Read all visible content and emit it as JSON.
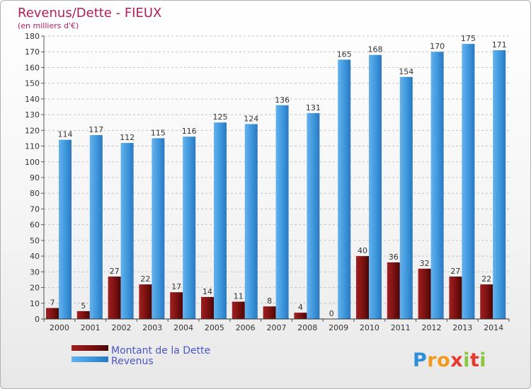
{
  "chart_data": {
    "type": "bar",
    "title": "Revenus/Dette - FIEUX",
    "subtitle": "(en milliers d'€)",
    "categories": [
      "2000",
      "2001",
      "2002",
      "2003",
      "2004",
      "2005",
      "2006",
      "2007",
      "2008",
      "2009",
      "2010",
      "2011",
      "2012",
      "2013",
      "2014"
    ],
    "series": [
      {
        "name": "Montant de la Dette",
        "color": "#7a1010",
        "values": [
          7,
          5,
          27,
          22,
          17,
          14,
          11,
          8,
          4,
          0,
          40,
          36,
          32,
          27,
          22
        ]
      },
      {
        "name": "Revenus",
        "color": "#3d96db",
        "values": [
          114,
          117,
          112,
          115,
          116,
          125,
          124,
          136,
          131,
          165,
          168,
          154,
          170,
          175,
          171
        ]
      }
    ],
    "ylim": [
      0,
      180
    ],
    "ytick_step": 10,
    "grid": true,
    "legend": "bottom-left"
  },
  "logo": {
    "letters": [
      "P",
      "r",
      "o",
      "x",
      "i",
      "t",
      "i"
    ],
    "colors": [
      "#2e8fd8",
      "#f39a1d",
      "#f39a1d",
      "#e63a2e",
      "#8cc63e",
      "#e63a2e",
      "#8cc63e"
    ]
  }
}
